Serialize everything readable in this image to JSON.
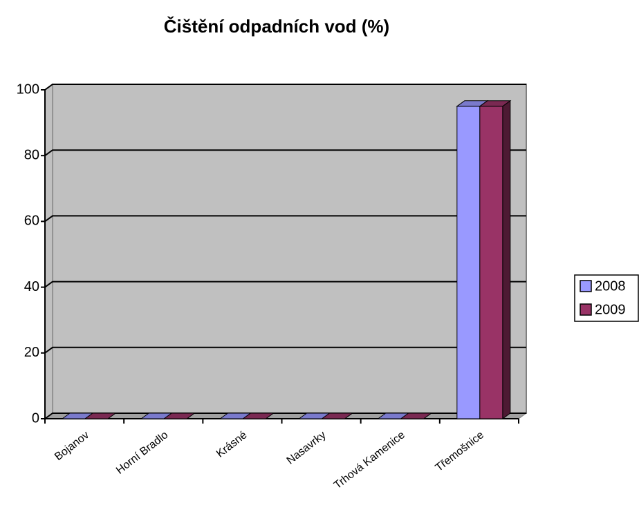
{
  "chart_data": {
    "type": "bar3d",
    "title": "Čištění odpadních vod (%)",
    "categories": [
      "Bojanov",
      "Horní Bradlo",
      "Krásné",
      "Nasavrky",
      "Trhová Kamenice",
      "Třemošnice"
    ],
    "series": [
      {
        "name": "2008",
        "color": "#9999ff",
        "values": [
          0,
          0,
          0,
          0,
          0,
          95
        ]
      },
      {
        "name": "2009",
        "color": "#993366",
        "values": [
          0,
          0,
          0,
          0,
          0,
          95
        ]
      }
    ],
    "ylim": [
      0,
      100
    ],
    "yticks": [
      0,
      20,
      40,
      60,
      80,
      100
    ],
    "grid": true,
    "legend": "right"
  }
}
